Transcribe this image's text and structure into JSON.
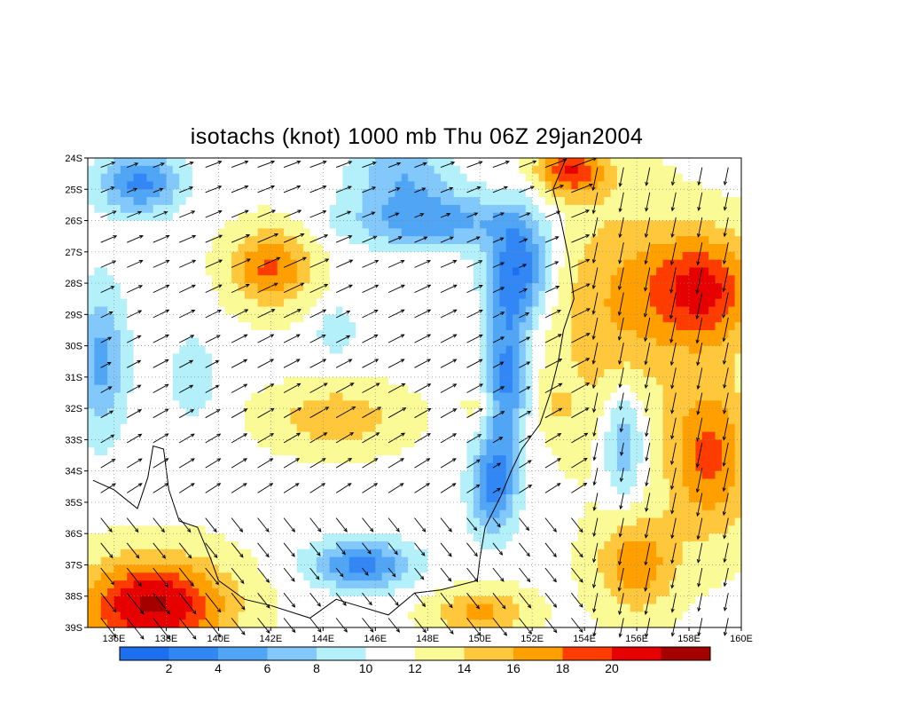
{
  "chart_data": {
    "type": "heatmap",
    "title": "isotachs (knot) 1000 mb Thu 06Z 29jan2004",
    "x_ticks": [
      "136E",
      "138E",
      "140E",
      "142E",
      "144E",
      "146E",
      "148E",
      "150E",
      "152E",
      "154E",
      "156E",
      "158E",
      "160E"
    ],
    "y_ticks": [
      "24S",
      "25S",
      "26S",
      "27S",
      "28S",
      "29S",
      "30S",
      "31S",
      "32S",
      "33S",
      "34S",
      "35S",
      "36S",
      "37S",
      "38S",
      "39S"
    ],
    "xlim": [
      135,
      160
    ],
    "ylim": [
      -39,
      -24
    ],
    "grid": true,
    "legend": "bottom",
    "colorbar": {
      "tick_labels": [
        "2",
        "4",
        "6",
        "8",
        "10",
        "12",
        "14",
        "16",
        "18",
        "20"
      ],
      "colors": [
        "#1e6ef0",
        "#3287f5",
        "#50a5f5",
        "#82c8fa",
        "#b4f0fa",
        "#ffffff",
        "#fafa96",
        "#ffc83c",
        "#ffa000",
        "#ff3c00",
        "#e60000",
        "#a50000"
      ]
    },
    "field_description": "wind speed isotachs with wind-vector arrows",
    "features": [
      {
        "name": "max-se",
        "lon": 158.5,
        "lat": -28.2,
        "value": 19
      },
      {
        "name": "max-sw",
        "lon": 137.5,
        "lat": -38.3,
        "value": 21
      },
      {
        "name": "max-ne",
        "lon": 153.5,
        "lat": -24.5,
        "value": 18
      },
      {
        "name": "max-inland",
        "lon": 142.0,
        "lat": -27.5,
        "value": 17
      },
      {
        "name": "min-coastal",
        "lon": 151.5,
        "lat": -27.5,
        "value": 2
      },
      {
        "name": "min-south",
        "lon": 145.5,
        "lat": -37.0,
        "value": 3
      },
      {
        "name": "min-nw",
        "lon": 137.0,
        "lat": -24.7,
        "value": 3
      }
    ]
  }
}
